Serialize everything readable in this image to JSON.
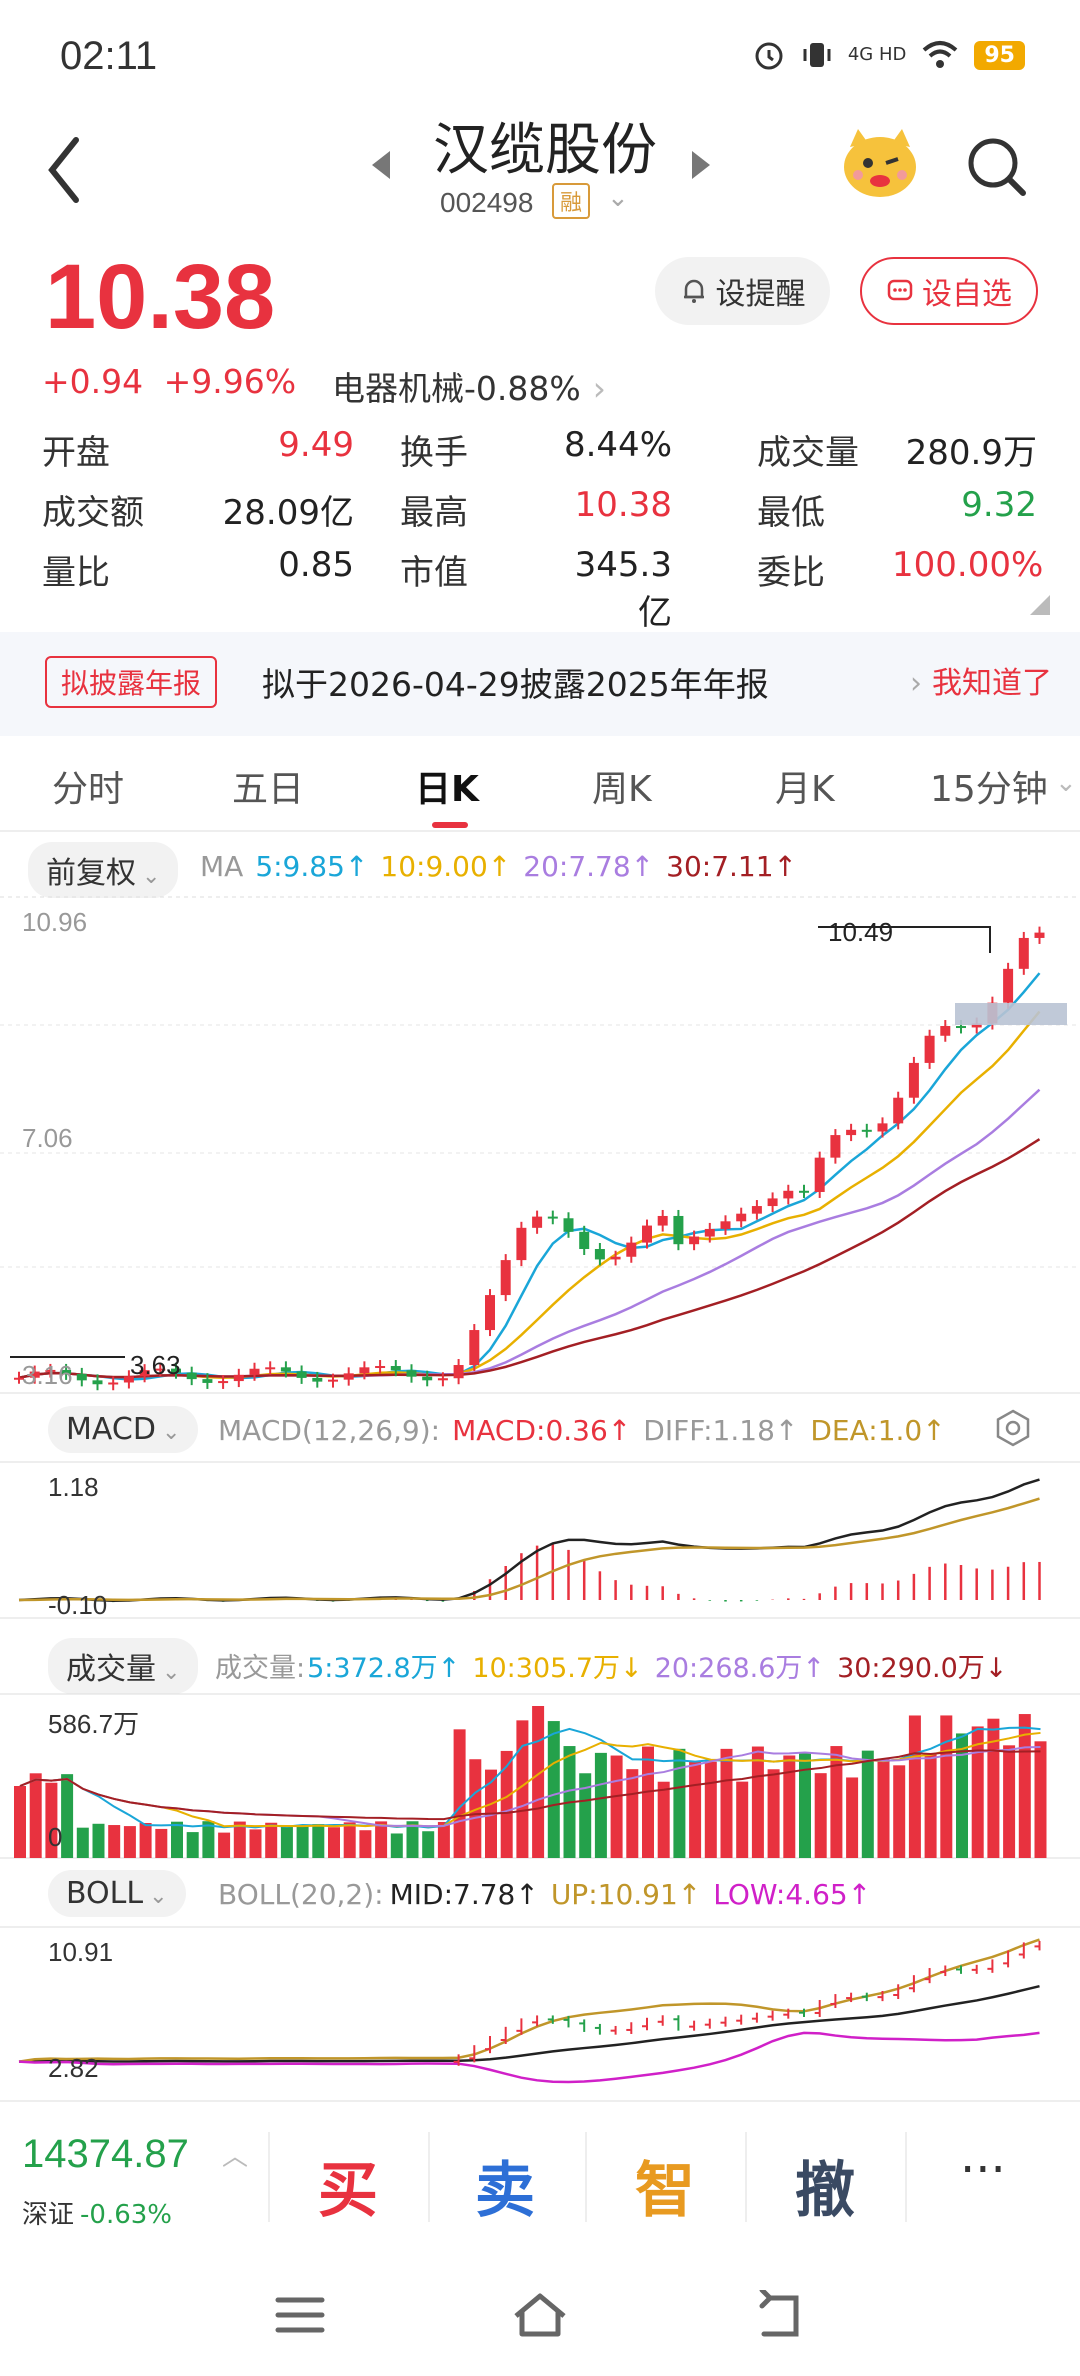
{
  "status_bar": {
    "time": "02:11",
    "network": "4G HD",
    "battery": "95"
  },
  "header": {
    "stock_name": "汉缆股份",
    "stock_code": "002498",
    "margin_tag": "融"
  },
  "quote": {
    "price": "10.38",
    "change": "+0.94",
    "change_pct": "+9.96%",
    "sector_name": "电器机械",
    "sector_pct": "-0.88%",
    "alert_label": "设提醒",
    "favorite_label": "设自选",
    "stats": [
      [
        {
          "label": "开盘",
          "value": "9.49"
        },
        {
          "label": "换手",
          "value": "8.44%"
        },
        {
          "label": "成交量",
          "value": "280.9万"
        }
      ],
      [
        {
          "label": "成交额",
          "value": "28.09亿"
        },
        {
          "label": "最高",
          "value": "10.38"
        },
        {
          "label": "最低",
          "value": "9.32"
        }
      ],
      [
        {
          "label": "量比",
          "value": "0.85"
        },
        {
          "label": "市值",
          "value": "345.3亿"
        },
        {
          "label": "委比",
          "value": "100.00%"
        }
      ]
    ]
  },
  "notice": {
    "tag": "拟披露年报",
    "text": "拟于2026-04-29披露2025年年报",
    "action": "我知道了"
  },
  "tabs": [
    "分时",
    "五日",
    "日K",
    "周K",
    "月K",
    "15分钟"
  ],
  "active_tab": "日K",
  "kline": {
    "adjust_label": "前复权",
    "ma_label": "MA",
    "ma": [
      {
        "label": "5:9.85↑",
        "color": "#1aa6d8"
      },
      {
        "label": "10:9.00↑",
        "color": "#e8b000"
      },
      {
        "label": "20:7.78↑",
        "color": "#a97de0"
      },
      {
        "label": "30:7.11↑",
        "color": "#a31f24"
      }
    ],
    "y_top": "10.96",
    "y_mid": "7.06",
    "y_low": "3.16",
    "low_marker": "3.63",
    "high_marker": "10.49"
  },
  "macd": {
    "label": "MACD",
    "params": "MACD(12,26,9):",
    "macd_val": "MACD:0.36↑",
    "diff_val": "DIFF:1.18↑",
    "dea_val": "DEA:1.0↑",
    "y_top": "1.18",
    "y_low": "-0.10"
  },
  "volume": {
    "label": "成交量",
    "prefix": "成交量:",
    "ma": [
      {
        "label": "5:372.8万↑",
        "color": "#1aa6d8"
      },
      {
        "label": "10:305.7万↓",
        "color": "#e8b000"
      },
      {
        "label": "20:268.6万↑",
        "color": "#a97de0"
      },
      {
        "label": "30:290.0万↓",
        "color": "#a31f24"
      }
    ],
    "y_top": "586.7万",
    "y_low": "0"
  },
  "boll": {
    "label": "BOLL",
    "params": "BOLL(20,2):",
    "mid": "MID:7.78↑",
    "up": "UP:10.91↑",
    "low": "LOW:4.65↑",
    "y_top": "10.91",
    "y_low": "2.82"
  },
  "bottom_bar": {
    "index_value": "14374.87",
    "index_name": "深证",
    "index_pct": "-0.63%",
    "buy": "买",
    "sell": "卖",
    "smart": "智",
    "cancel": "撤",
    "more": "···"
  }
}
